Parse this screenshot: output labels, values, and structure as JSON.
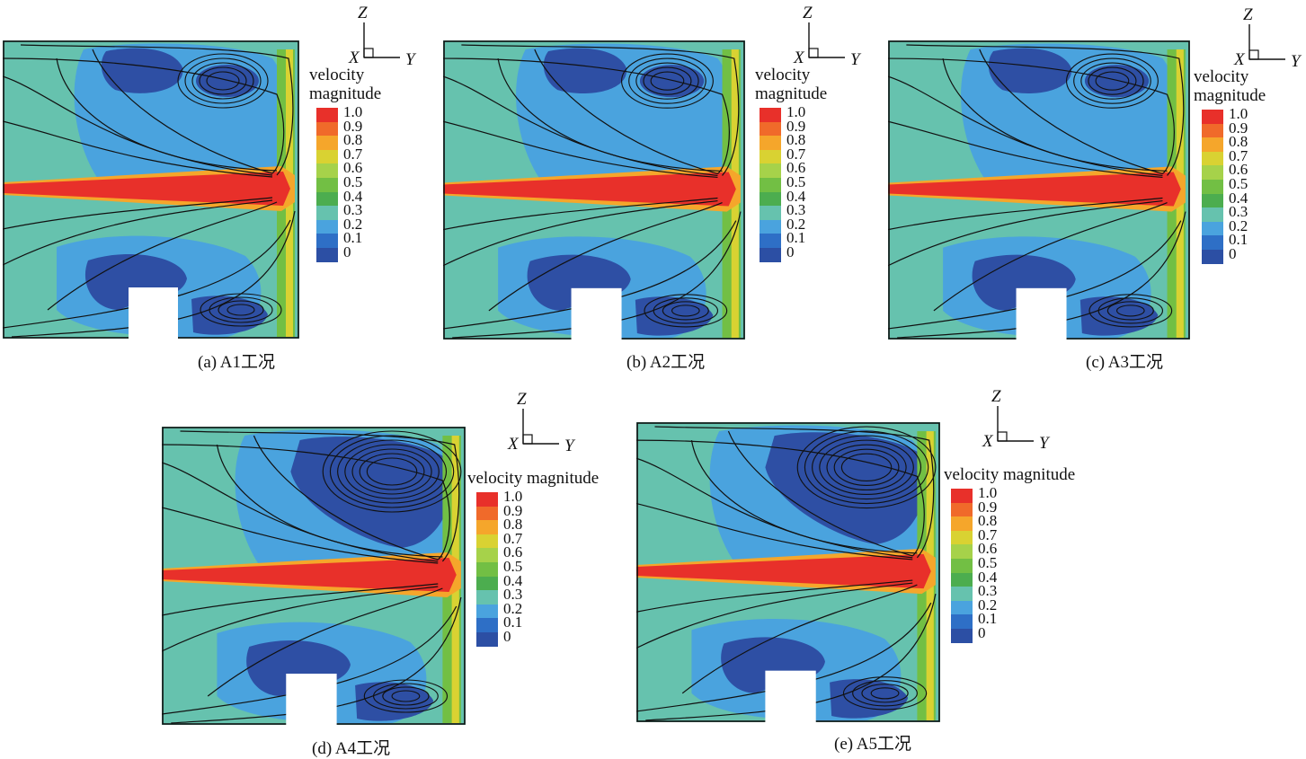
{
  "legend": {
    "title": "velocity magnitude",
    "title_wrapped": [
      "velocity",
      "magnitude"
    ],
    "ticks": [
      "1.0",
      "0.9",
      "0.8",
      "0.7",
      "0.6",
      "0.5",
      "0.4",
      "0.3",
      "0.2",
      "0.1",
      "0"
    ],
    "colors": [
      "#e8302a",
      "#f06a2a",
      "#f5a62b",
      "#d9d232",
      "#a6d24a",
      "#72bf44",
      "#4cad4f",
      "#66c2ae",
      "#4aa3de",
      "#2e6fc6",
      "#2c4fa4"
    ]
  },
  "axes": {
    "z": "Z",
    "x": "X",
    "y": "Y"
  },
  "colors": {
    "background": "#66c2ae",
    "jet": "#e8302a",
    "jet_edge": "#f5a62b",
    "mid_blue": "#4aa3de",
    "dark_blue": "#2e4fa4",
    "green": "#72bf44",
    "yellow": "#d9d232",
    "streamline": "#111111",
    "obstacle": "#ffffff"
  },
  "panels": [
    {
      "id": "a",
      "caption": "(a) A1工况",
      "legend_wrapped": true
    },
    {
      "id": "b",
      "caption": "(b) A2工况",
      "legend_wrapped": true
    },
    {
      "id": "c",
      "caption": "(c) A3工况",
      "legend_wrapped": true
    },
    {
      "id": "d",
      "caption": "(d) A4工况",
      "legend_wrapped": false
    },
    {
      "id": "e",
      "caption": "(e) A5工况",
      "legend_wrapped": false
    }
  ]
}
